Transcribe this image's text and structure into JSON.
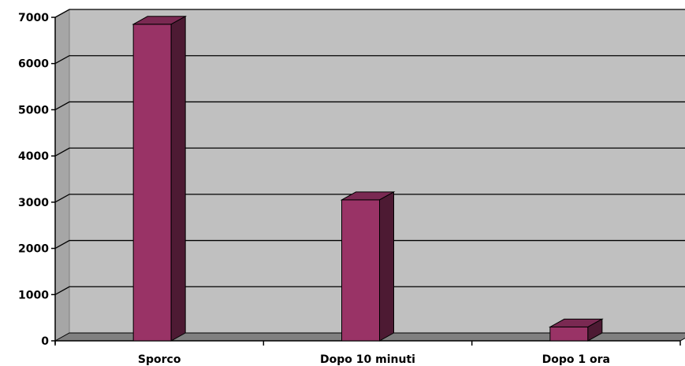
{
  "chart_data": {
    "type": "bar",
    "categories": [
      "Sporco",
      "Dopo 10 minuti",
      "Dopo 1 ora"
    ],
    "values": [
      6850,
      3050,
      300
    ],
    "title": "",
    "xlabel": "",
    "ylabel": "",
    "ylim": [
      0,
      7000
    ],
    "y_ticks": [
      "0",
      "1000",
      "2000",
      "3000",
      "4000",
      "5000",
      "6000",
      "7000"
    ],
    "grid": true,
    "legend": "none",
    "colors": {
      "bar_front": "#993366",
      "bar_top": "#7a2952",
      "bar_side": "#4d1a33",
      "plot_wall": "#c0c0c0",
      "floor": "#808080",
      "gridline": "#000000"
    }
  }
}
